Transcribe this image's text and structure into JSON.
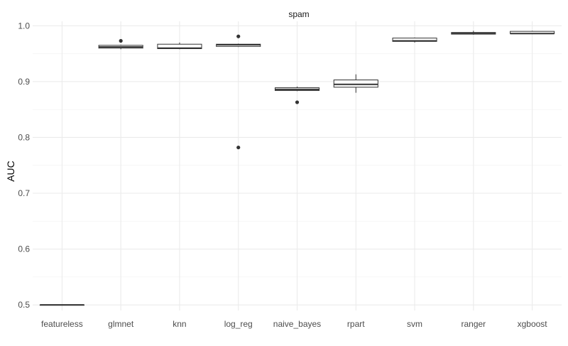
{
  "chart_data": {
    "type": "box",
    "facet_title": "spam",
    "xlabel": "",
    "ylabel": "AUC",
    "ylim": [
      0.49,
      1.008
    ],
    "y_ticks": [
      0.5,
      0.6,
      0.7,
      0.8,
      0.9,
      1.0
    ],
    "y_tick_labels": [
      "0.5",
      "0.6",
      "0.7",
      "0.8",
      "0.9",
      "1.0"
    ],
    "grid": true,
    "categories": [
      "featureless",
      "glmnet",
      "knn",
      "log_reg",
      "naive_bayes",
      "rpart",
      "svm",
      "ranger",
      "xgboost"
    ],
    "boxes": [
      {
        "label": "featureless",
        "min": 0.5,
        "q1": 0.5,
        "median": 0.5,
        "q3": 0.5,
        "max": 0.5,
        "outliers": []
      },
      {
        "label": "glmnet",
        "min": 0.958,
        "q1": 0.96,
        "median": 0.962,
        "q3": 0.965,
        "max": 0.966,
        "outliers": [
          0.973
        ]
      },
      {
        "label": "knn",
        "min": 0.958,
        "q1": 0.959,
        "median": 0.96,
        "q3": 0.967,
        "max": 0.97,
        "outliers": []
      },
      {
        "label": "log_reg",
        "min": 0.962,
        "q1": 0.963,
        "median": 0.966,
        "q3": 0.967,
        "max": 0.968,
        "outliers": [
          0.981,
          0.782
        ]
      },
      {
        "label": "naive_bayes",
        "min": 0.883,
        "q1": 0.884,
        "median": 0.886,
        "q3": 0.889,
        "max": 0.891,
        "outliers": [
          0.863
        ]
      },
      {
        "label": "rpart",
        "min": 0.88,
        "q1": 0.89,
        "median": 0.895,
        "q3": 0.903,
        "max": 0.913,
        "outliers": []
      },
      {
        "label": "svm",
        "min": 0.97,
        "q1": 0.972,
        "median": 0.973,
        "q3": 0.978,
        "max": 0.979,
        "outliers": []
      },
      {
        "label": "ranger",
        "min": 0.984,
        "q1": 0.985,
        "median": 0.987,
        "q3": 0.988,
        "max": 0.991,
        "outliers": []
      },
      {
        "label": "xgboost",
        "min": 0.985,
        "q1": 0.986,
        "median": 0.986,
        "q3": 0.99,
        "max": 0.991,
        "outliers": []
      }
    ]
  }
}
